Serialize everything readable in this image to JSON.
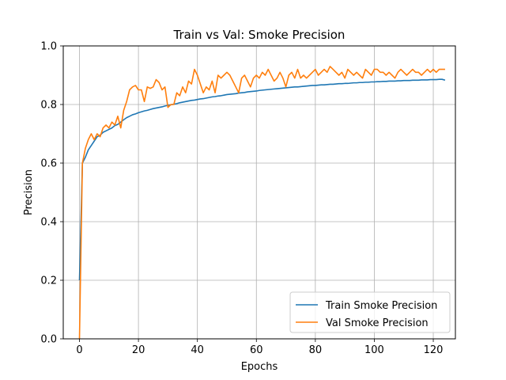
{
  "chart_data": {
    "type": "line",
    "title": "Train vs Val: Smoke Precision",
    "xlabel": "Epochs",
    "ylabel": "Precision",
    "xlim": [
      -5.5,
      127.5
    ],
    "ylim": [
      0.0,
      1.0
    ],
    "xticks": [
      0,
      20,
      40,
      60,
      80,
      100,
      120
    ],
    "yticks": [
      0.0,
      0.2,
      0.4,
      0.6,
      0.8,
      1.0
    ],
    "xtick_labels": [
      "0",
      "20",
      "40",
      "60",
      "80",
      "100",
      "120"
    ],
    "ytick_labels": [
      "0.0",
      "0.2",
      "0.4",
      "0.6",
      "0.8",
      "1.0"
    ],
    "grid": true,
    "legend_position": "lower-right",
    "series": [
      {
        "name": "Train Smoke Precision",
        "color": "#1f77b4",
        "values": [
          0.2,
          0.6,
          0.62,
          0.645,
          0.66,
          0.675,
          0.69,
          0.695,
          0.705,
          0.71,
          0.715,
          0.72,
          0.728,
          0.732,
          0.74,
          0.748,
          0.755,
          0.76,
          0.765,
          0.768,
          0.772,
          0.775,
          0.778,
          0.78,
          0.783,
          0.786,
          0.788,
          0.79,
          0.792,
          0.795,
          0.797,
          0.799,
          0.801,
          0.803,
          0.806,
          0.808,
          0.81,
          0.812,
          0.814,
          0.815,
          0.817,
          0.819,
          0.82,
          0.822,
          0.824,
          0.826,
          0.827,
          0.829,
          0.83,
          0.832,
          0.834,
          0.835,
          0.836,
          0.837,
          0.839,
          0.84,
          0.841,
          0.843,
          0.844,
          0.845,
          0.846,
          0.848,
          0.849,
          0.85,
          0.851,
          0.852,
          0.853,
          0.854,
          0.855,
          0.856,
          0.857,
          0.858,
          0.859,
          0.86,
          0.86,
          0.861,
          0.862,
          0.863,
          0.864,
          0.865,
          0.865,
          0.866,
          0.867,
          0.867,
          0.868,
          0.869,
          0.869,
          0.87,
          0.871,
          0.871,
          0.872,
          0.872,
          0.873,
          0.874,
          0.874,
          0.875,
          0.875,
          0.876,
          0.876,
          0.877,
          0.877,
          0.878,
          0.878,
          0.879,
          0.879,
          0.88,
          0.88,
          0.88,
          0.881,
          0.881,
          0.882,
          0.882,
          0.882,
          0.883,
          0.883,
          0.883,
          0.884,
          0.884,
          0.884,
          0.885,
          0.885,
          0.885,
          0.886,
          0.886,
          0.883
        ]
      },
      {
        "name": "Val Smoke Precision",
        "color": "#ff7f0e",
        "values": [
          0.0,
          0.6,
          0.65,
          0.68,
          0.7,
          0.68,
          0.7,
          0.69,
          0.72,
          0.73,
          0.72,
          0.74,
          0.73,
          0.76,
          0.72,
          0.78,
          0.81,
          0.85,
          0.86,
          0.865,
          0.85,
          0.85,
          0.81,
          0.86,
          0.855,
          0.86,
          0.885,
          0.875,
          0.85,
          0.86,
          0.79,
          0.8,
          0.8,
          0.84,
          0.83,
          0.86,
          0.84,
          0.88,
          0.87,
          0.92,
          0.9,
          0.87,
          0.84,
          0.86,
          0.85,
          0.88,
          0.84,
          0.9,
          0.89,
          0.9,
          0.91,
          0.9,
          0.88,
          0.86,
          0.84,
          0.89,
          0.9,
          0.88,
          0.86,
          0.89,
          0.9,
          0.89,
          0.91,
          0.9,
          0.92,
          0.9,
          0.88,
          0.89,
          0.91,
          0.89,
          0.86,
          0.9,
          0.91,
          0.89,
          0.92,
          0.89,
          0.9,
          0.89,
          0.9,
          0.91,
          0.92,
          0.9,
          0.91,
          0.92,
          0.91,
          0.93,
          0.92,
          0.91,
          0.9,
          0.91,
          0.89,
          0.92,
          0.91,
          0.9,
          0.91,
          0.9,
          0.89,
          0.92,
          0.91,
          0.9,
          0.92,
          0.92,
          0.91,
          0.91,
          0.9,
          0.91,
          0.9,
          0.89,
          0.91,
          0.92,
          0.91,
          0.9,
          0.91,
          0.92,
          0.91,
          0.91,
          0.9,
          0.91,
          0.92,
          0.91,
          0.92,
          0.91,
          0.92,
          0.92,
          0.92
        ]
      }
    ]
  }
}
